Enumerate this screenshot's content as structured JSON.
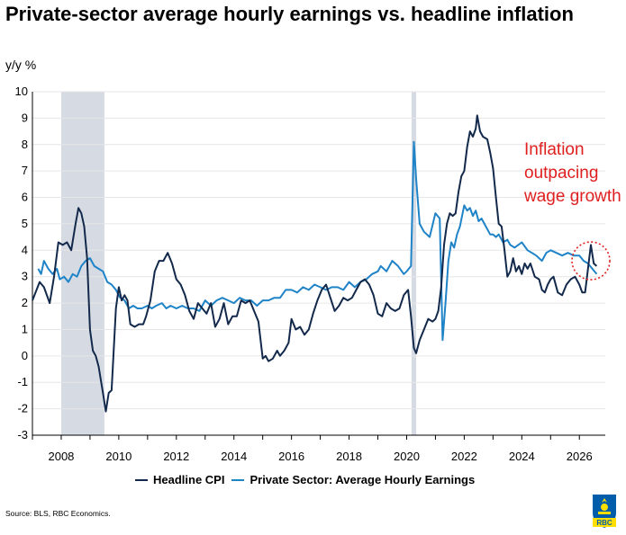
{
  "title": "Private-sector average hourly earnings vs. headline inflation",
  "y_unit": "y/y %",
  "annotation": "Inflation outpacing wage growth",
  "source": "Source: BLS, RBC Economics.",
  "logo_text": "RBC",
  "colors": {
    "cpi": "#13294b",
    "wages": "#1f83c8",
    "recession_shading": "#d6dbe3",
    "annotation": "#e02020",
    "gridline": "#e6e6e6"
  },
  "chart_data": {
    "type": "line",
    "xlim": [
      2007.0,
      2026.9
    ],
    "ylim": [
      -3,
      10
    ],
    "grid": "horizontal",
    "legend_position": "bottom",
    "x_ticks": [
      "2008",
      "2010",
      "2012",
      "2014",
      "2016",
      "2018",
      "2020",
      "2022",
      "2024",
      "2026"
    ],
    "y_ticks": [
      "-3",
      "-2",
      "-1",
      "0",
      "1",
      "2",
      "3",
      "4",
      "5",
      "6",
      "7",
      "8",
      "9",
      "10"
    ],
    "shaded_periods": [
      [
        2008.0,
        2009.5
      ],
      [
        2020.17,
        2020.33
      ]
    ],
    "annotation_circle": {
      "x": 2026.4,
      "y": 3.6
    },
    "series": [
      {
        "name": "Headline CPI",
        "color_key": "cpi",
        "points": [
          [
            2007.0,
            2.1
          ],
          [
            2007.25,
            2.8
          ],
          [
            2007.4,
            2.6
          ],
          [
            2007.6,
            2.0
          ],
          [
            2007.75,
            3.0
          ],
          [
            2007.9,
            4.3
          ],
          [
            2008.05,
            4.2
          ],
          [
            2008.2,
            4.3
          ],
          [
            2008.35,
            4.0
          ],
          [
            2008.5,
            5.0
          ],
          [
            2008.6,
            5.6
          ],
          [
            2008.7,
            5.4
          ],
          [
            2008.8,
            4.9
          ],
          [
            2008.9,
            3.7
          ],
          [
            2009.0,
            1.0
          ],
          [
            2009.1,
            0.2
          ],
          [
            2009.2,
            0.0
          ],
          [
            2009.3,
            -0.4
          ],
          [
            2009.45,
            -1.4
          ],
          [
            2009.55,
            -2.1
          ],
          [
            2009.65,
            -1.4
          ],
          [
            2009.75,
            -1.3
          ],
          [
            2009.9,
            1.8
          ],
          [
            2010.0,
            2.6
          ],
          [
            2010.1,
            2.1
          ],
          [
            2010.2,
            2.3
          ],
          [
            2010.3,
            2.1
          ],
          [
            2010.4,
            1.2
          ],
          [
            2010.55,
            1.1
          ],
          [
            2010.7,
            1.2
          ],
          [
            2010.85,
            1.2
          ],
          [
            2010.95,
            1.5
          ],
          [
            2011.1,
            2.1
          ],
          [
            2011.25,
            3.2
          ],
          [
            2011.4,
            3.6
          ],
          [
            2011.55,
            3.6
          ],
          [
            2011.7,
            3.9
          ],
          [
            2011.85,
            3.5
          ],
          [
            2012.0,
            2.9
          ],
          [
            2012.15,
            2.7
          ],
          [
            2012.3,
            2.3
          ],
          [
            2012.45,
            1.7
          ],
          [
            2012.6,
            1.4
          ],
          [
            2012.75,
            2.0
          ],
          [
            2012.9,
            1.8
          ],
          [
            2013.05,
            1.6
          ],
          [
            2013.2,
            2.0
          ],
          [
            2013.35,
            1.1
          ],
          [
            2013.5,
            1.4
          ],
          [
            2013.65,
            2.0
          ],
          [
            2013.8,
            1.2
          ],
          [
            2013.95,
            1.5
          ],
          [
            2014.1,
            1.5
          ],
          [
            2014.25,
            2.1
          ],
          [
            2014.4,
            2.0
          ],
          [
            2014.55,
            2.1
          ],
          [
            2014.7,
            1.7
          ],
          [
            2014.85,
            1.3
          ],
          [
            2015.0,
            -0.1
          ],
          [
            2015.1,
            0.0
          ],
          [
            2015.2,
            -0.2
          ],
          [
            2015.35,
            -0.1
          ],
          [
            2015.5,
            0.2
          ],
          [
            2015.6,
            0.0
          ],
          [
            2015.75,
            0.2
          ],
          [
            2015.9,
            0.5
          ],
          [
            2016.0,
            1.4
          ],
          [
            2016.15,
            1.0
          ],
          [
            2016.3,
            1.1
          ],
          [
            2016.45,
            0.8
          ],
          [
            2016.6,
            1.0
          ],
          [
            2016.75,
            1.6
          ],
          [
            2016.9,
            2.1
          ],
          [
            2017.05,
            2.5
          ],
          [
            2017.2,
            2.7
          ],
          [
            2017.35,
            2.2
          ],
          [
            2017.5,
            1.7
          ],
          [
            2017.65,
            1.9
          ],
          [
            2017.8,
            2.2
          ],
          [
            2017.95,
            2.1
          ],
          [
            2018.1,
            2.2
          ],
          [
            2018.25,
            2.5
          ],
          [
            2018.4,
            2.8
          ],
          [
            2018.55,
            2.9
          ],
          [
            2018.7,
            2.7
          ],
          [
            2018.85,
            2.3
          ],
          [
            2019.0,
            1.6
          ],
          [
            2019.15,
            1.5
          ],
          [
            2019.3,
            2.0
          ],
          [
            2019.45,
            1.8
          ],
          [
            2019.6,
            1.7
          ],
          [
            2019.75,
            1.8
          ],
          [
            2019.9,
            2.3
          ],
          [
            2020.05,
            2.5
          ],
          [
            2020.15,
            1.5
          ],
          [
            2020.25,
            0.3
          ],
          [
            2020.33,
            0.1
          ],
          [
            2020.45,
            0.6
          ],
          [
            2020.6,
            1.0
          ],
          [
            2020.75,
            1.4
          ],
          [
            2020.9,
            1.3
          ],
          [
            2021.0,
            1.4
          ],
          [
            2021.1,
            1.7
          ],
          [
            2021.2,
            2.6
          ],
          [
            2021.3,
            4.2
          ],
          [
            2021.4,
            5.0
          ],
          [
            2021.5,
            5.4
          ],
          [
            2021.6,
            5.3
          ],
          [
            2021.7,
            5.4
          ],
          [
            2021.8,
            6.2
          ],
          [
            2021.9,
            6.8
          ],
          [
            2022.0,
            7.0
          ],
          [
            2022.1,
            7.9
          ],
          [
            2022.2,
            8.5
          ],
          [
            2022.3,
            8.3
          ],
          [
            2022.4,
            8.6
          ],
          [
            2022.45,
            9.1
          ],
          [
            2022.55,
            8.5
          ],
          [
            2022.65,
            8.3
          ],
          [
            2022.8,
            8.2
          ],
          [
            2022.9,
            7.7
          ],
          [
            2023.0,
            7.1
          ],
          [
            2023.1,
            6.0
          ],
          [
            2023.2,
            5.0
          ],
          [
            2023.3,
            4.9
          ],
          [
            2023.4,
            4.0
          ],
          [
            2023.5,
            3.0
          ],
          [
            2023.6,
            3.2
          ],
          [
            2023.7,
            3.7
          ],
          [
            2023.8,
            3.2
          ],
          [
            2023.9,
            3.4
          ],
          [
            2024.0,
            3.1
          ],
          [
            2024.1,
            3.5
          ],
          [
            2024.2,
            3.3
          ],
          [
            2024.3,
            3.5
          ],
          [
            2024.45,
            3.0
          ],
          [
            2024.6,
            2.9
          ],
          [
            2024.7,
            2.5
          ],
          [
            2024.8,
            2.4
          ],
          [
            2024.9,
            2.7
          ],
          [
            2025.0,
            2.9
          ],
          [
            2025.1,
            3.0
          ],
          [
            2025.25,
            2.4
          ],
          [
            2025.4,
            2.3
          ],
          [
            2025.55,
            2.7
          ],
          [
            2025.7,
            2.9
          ],
          [
            2025.85,
            3.0
          ],
          [
            2026.0,
            2.7
          ],
          [
            2026.1,
            2.4
          ],
          [
            2026.2,
            2.4
          ],
          [
            2026.3,
            3.3
          ],
          [
            2026.4,
            4.2
          ],
          [
            2026.5,
            3.5
          ],
          [
            2026.6,
            3.4
          ]
        ]
      },
      {
        "name": "Private Sector: Average Hourly Earnings",
        "color_key": "wages",
        "points": [
          [
            2007.2,
            3.3
          ],
          [
            2007.3,
            3.1
          ],
          [
            2007.4,
            3.6
          ],
          [
            2007.55,
            3.3
          ],
          [
            2007.7,
            3.1
          ],
          [
            2007.85,
            3.3
          ],
          [
            2007.95,
            2.9
          ],
          [
            2008.1,
            3.0
          ],
          [
            2008.25,
            2.8
          ],
          [
            2008.4,
            3.1
          ],
          [
            2008.55,
            3.0
          ],
          [
            2008.7,
            3.4
          ],
          [
            2008.85,
            3.6
          ],
          [
            2009.0,
            3.7
          ],
          [
            2009.15,
            3.4
          ],
          [
            2009.3,
            3.3
          ],
          [
            2009.45,
            3.2
          ],
          [
            2009.6,
            2.8
          ],
          [
            2009.75,
            2.7
          ],
          [
            2009.9,
            2.5
          ],
          [
            2010.05,
            2.2
          ],
          [
            2010.2,
            2.1
          ],
          [
            2010.35,
            1.8
          ],
          [
            2010.5,
            1.9
          ],
          [
            2010.65,
            1.8
          ],
          [
            2010.8,
            1.8
          ],
          [
            2011.0,
            1.9
          ],
          [
            2011.15,
            1.8
          ],
          [
            2011.3,
            1.9
          ],
          [
            2011.5,
            2.0
          ],
          [
            2011.65,
            1.8
          ],
          [
            2011.8,
            1.9
          ],
          [
            2012.0,
            1.8
          ],
          [
            2012.2,
            1.9
          ],
          [
            2012.4,
            1.8
          ],
          [
            2012.6,
            1.8
          ],
          [
            2012.8,
            1.7
          ],
          [
            2013.0,
            2.1
          ],
          [
            2013.2,
            1.9
          ],
          [
            2013.4,
            2.1
          ],
          [
            2013.6,
            2.2
          ],
          [
            2013.8,
            2.1
          ],
          [
            2014.0,
            2.0
          ],
          [
            2014.2,
            2.2
          ],
          [
            2014.4,
            2.1
          ],
          [
            2014.6,
            2.1
          ],
          [
            2014.8,
            1.9
          ],
          [
            2015.0,
            2.1
          ],
          [
            2015.2,
            2.1
          ],
          [
            2015.4,
            2.2
          ],
          [
            2015.6,
            2.2
          ],
          [
            2015.8,
            2.5
          ],
          [
            2016.0,
            2.5
          ],
          [
            2016.2,
            2.4
          ],
          [
            2016.4,
            2.6
          ],
          [
            2016.6,
            2.5
          ],
          [
            2016.8,
            2.7
          ],
          [
            2017.0,
            2.6
          ],
          [
            2017.2,
            2.5
          ],
          [
            2017.4,
            2.6
          ],
          [
            2017.6,
            2.6
          ],
          [
            2017.8,
            2.5
          ],
          [
            2018.0,
            2.8
          ],
          [
            2018.2,
            2.6
          ],
          [
            2018.4,
            2.8
          ],
          [
            2018.6,
            2.9
          ],
          [
            2018.8,
            3.1
          ],
          [
            2019.0,
            3.2
          ],
          [
            2019.1,
            3.4
          ],
          [
            2019.3,
            3.2
          ],
          [
            2019.5,
            3.6
          ],
          [
            2019.7,
            3.4
          ],
          [
            2019.9,
            3.1
          ],
          [
            2020.0,
            3.2
          ],
          [
            2020.15,
            3.4
          ],
          [
            2020.25,
            8.1
          ],
          [
            2020.33,
            6.7
          ],
          [
            2020.45,
            5.0
          ],
          [
            2020.6,
            4.7
          ],
          [
            2020.8,
            4.5
          ],
          [
            2021.0,
            5.4
          ],
          [
            2021.15,
            5.2
          ],
          [
            2021.25,
            0.6
          ],
          [
            2021.35,
            2.0
          ],
          [
            2021.45,
            3.6
          ],
          [
            2021.55,
            4.3
          ],
          [
            2021.65,
            4.1
          ],
          [
            2021.75,
            4.6
          ],
          [
            2021.85,
            4.9
          ],
          [
            2022.0,
            5.7
          ],
          [
            2022.1,
            5.5
          ],
          [
            2022.2,
            5.6
          ],
          [
            2022.3,
            5.3
          ],
          [
            2022.4,
            5.5
          ],
          [
            2022.5,
            5.1
          ],
          [
            2022.6,
            5.2
          ],
          [
            2022.7,
            5.0
          ],
          [
            2022.8,
            4.8
          ],
          [
            2022.9,
            4.6
          ],
          [
            2023.0,
            4.6
          ],
          [
            2023.1,
            4.5
          ],
          [
            2023.2,
            4.6
          ],
          [
            2023.35,
            4.3
          ],
          [
            2023.5,
            4.4
          ],
          [
            2023.6,
            4.2
          ],
          [
            2023.75,
            4.1
          ],
          [
            2024.0,
            4.3
          ],
          [
            2024.2,
            4.0
          ],
          [
            2024.35,
            3.9
          ],
          [
            2024.5,
            3.8
          ],
          [
            2024.7,
            3.6
          ],
          [
            2024.85,
            3.9
          ],
          [
            2025.0,
            4.0
          ],
          [
            2025.2,
            3.9
          ],
          [
            2025.4,
            3.8
          ],
          [
            2025.6,
            3.9
          ],
          [
            2025.8,
            3.8
          ],
          [
            2026.0,
            3.8
          ],
          [
            2026.15,
            3.6
          ],
          [
            2026.3,
            3.5
          ],
          [
            2026.45,
            3.3
          ],
          [
            2026.6,
            3.1
          ]
        ]
      }
    ]
  }
}
